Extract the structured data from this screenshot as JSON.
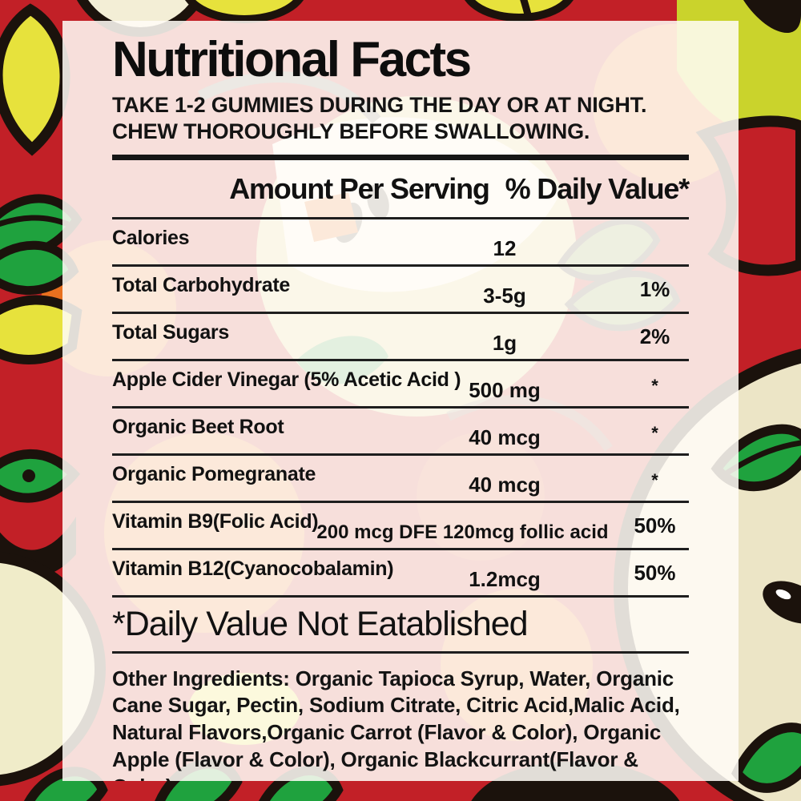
{
  "label": {
    "title": "Nutritional Facts",
    "directions": "TAKE 1-2 GUMMIES DURING THE DAY OR AT NIGHT. CHEW THOROUGHLY BEFORE SWALLOWING.",
    "header": {
      "amount_label": "Amount Per Serving",
      "daily_value_label": "% Daily Value*"
    },
    "rows": [
      {
        "name": "Calories",
        "amount": "12",
        "dv": ""
      },
      {
        "name": "Total Carbohydrate",
        "amount": "3-5g",
        "dv": "1%"
      },
      {
        "name": "Total Sugars",
        "amount": "1g",
        "dv": "2%"
      },
      {
        "name": "Apple Cider Vinegar (5% Acetic Acid )",
        "amount": "500 mg",
        "dv": "*"
      },
      {
        "name": "Organic Beet Root",
        "amount": "40 mcg",
        "dv": "*"
      },
      {
        "name": "Organic Pomegranate",
        "amount": "40 mcg",
        "dv": "*"
      },
      {
        "name": "Vitamin B9(Folic Acid)",
        "amount": "200 mcg DFE 120mcg follic acid",
        "dv": "50%"
      },
      {
        "name": "Vitamin B12(Cyanocobalamin)",
        "amount": "1.2mcg",
        "dv": "50%"
      }
    ],
    "footnote": "*Daily Value Not Eatablished",
    "other_ingredients": "Other Ingredients: Organic Tapioca Syrup, Water, Organic Cane Sugar, Pectin, Sodium Citrate, Citric Acid,Malic Acid, Natural Flavors,Organic Carrot (Flavor & Color), Organic Apple (Flavor & Color), Organic Blackcurrant(Flavor & Color)"
  },
  "colors": {
    "background_red": "#c22027",
    "leaf_green": "#1fa23e",
    "accent_yellow": "#e7e23c",
    "chartreuse": "#cad32c",
    "outline_black": "#1b120c",
    "apple_cream": "#ece5c6",
    "panel_overlay": "#fffcf6",
    "text": "#111111"
  }
}
